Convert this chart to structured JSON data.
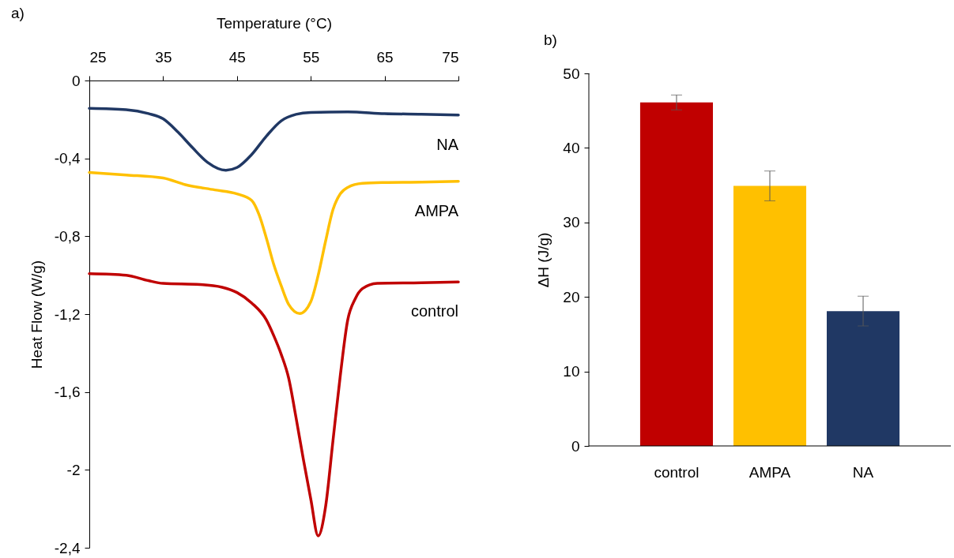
{
  "chart_data": [
    {
      "type": "line",
      "xlabel": "Temperature (°C)",
      "ylabel": "Heat Flow (W/g)",
      "xlim": [
        25,
        75
      ],
      "xticks": [
        25,
        35,
        45,
        55,
        65,
        75
      ],
      "ylim": [
        -2.4,
        0
      ],
      "yticks": [
        {
          "value": 0,
          "label": "0"
        },
        {
          "value": -0.4,
          "label": "-0,4"
        },
        {
          "value": -0.8,
          "label": "-0,8"
        },
        {
          "value": -1.2,
          "label": "-1,2"
        },
        {
          "value": -1.6,
          "label": "-1,6"
        },
        {
          "value": -2,
          "label": "-2"
        },
        {
          "value": -2.4,
          "label": "-2,4"
        }
      ],
      "grid": false,
      "legend": false,
      "annotations": [
        "a)"
      ],
      "series": [
        {
          "name": "NA",
          "color": "#203864",
          "x": [
            25,
            30,
            33,
            35,
            37,
            39,
            41,
            43.5,
            45,
            47,
            49,
            51,
            53,
            55,
            60,
            65,
            70,
            75
          ],
          "values": [
            -0.143,
            -0.15,
            -0.17,
            -0.197,
            -0.265,
            -0.346,
            -0.42,
            -0.461,
            -0.447,
            -0.38,
            -0.285,
            -0.207,
            -0.174,
            -0.164,
            -0.161,
            -0.17,
            -0.173,
            -0.177
          ]
        },
        {
          "name": "AMPA",
          "color": "#ffc000",
          "x": [
            25,
            30,
            35,
            38,
            42,
            45,
            47,
            48,
            49,
            50,
            51,
            52,
            53.5,
            55,
            56,
            57,
            58,
            59,
            60,
            62,
            65,
            70,
            75
          ],
          "values": [
            -0.472,
            -0.485,
            -0.501,
            -0.535,
            -0.562,
            -0.582,
            -0.616,
            -0.69,
            -0.812,
            -0.947,
            -1.055,
            -1.15,
            -1.197,
            -1.136,
            -1.001,
            -0.826,
            -0.664,
            -0.582,
            -0.549,
            -0.528,
            -0.524,
            -0.522,
            -0.518
          ]
        },
        {
          "name": "control",
          "color": "#c00000",
          "x": [
            25,
            30,
            33,
            35,
            40,
            43,
            45,
            47,
            49,
            50,
            51,
            52,
            53,
            54,
            55,
            56,
            57,
            58,
            59,
            60,
            61,
            62,
            64,
            70,
            75
          ],
          "values": [
            -0.992,
            -1.0,
            -1.028,
            -1.042,
            -1.048,
            -1.062,
            -1.089,
            -1.143,
            -1.231,
            -1.312,
            -1.407,
            -1.528,
            -1.731,
            -1.947,
            -2.15,
            -2.339,
            -2.19,
            -1.852,
            -1.515,
            -1.231,
            -1.123,
            -1.069,
            -1.042,
            -1.039,
            -1.035
          ]
        }
      ]
    },
    {
      "type": "bar",
      "ylabel": "ΔH (J/g)",
      "categories": [
        "control",
        "AMPA",
        "NA"
      ],
      "values": [
        46.1,
        34.9,
        18.1
      ],
      "colors": [
        "#c00000",
        "#ffc000",
        "#203864"
      ],
      "errors": [
        1,
        2,
        2
      ],
      "ylim": [
        0,
        50
      ],
      "yticks": [
        0,
        10,
        20,
        30,
        40,
        50
      ],
      "grid": false,
      "legend": false,
      "annotations": [
        "b)"
      ]
    }
  ]
}
